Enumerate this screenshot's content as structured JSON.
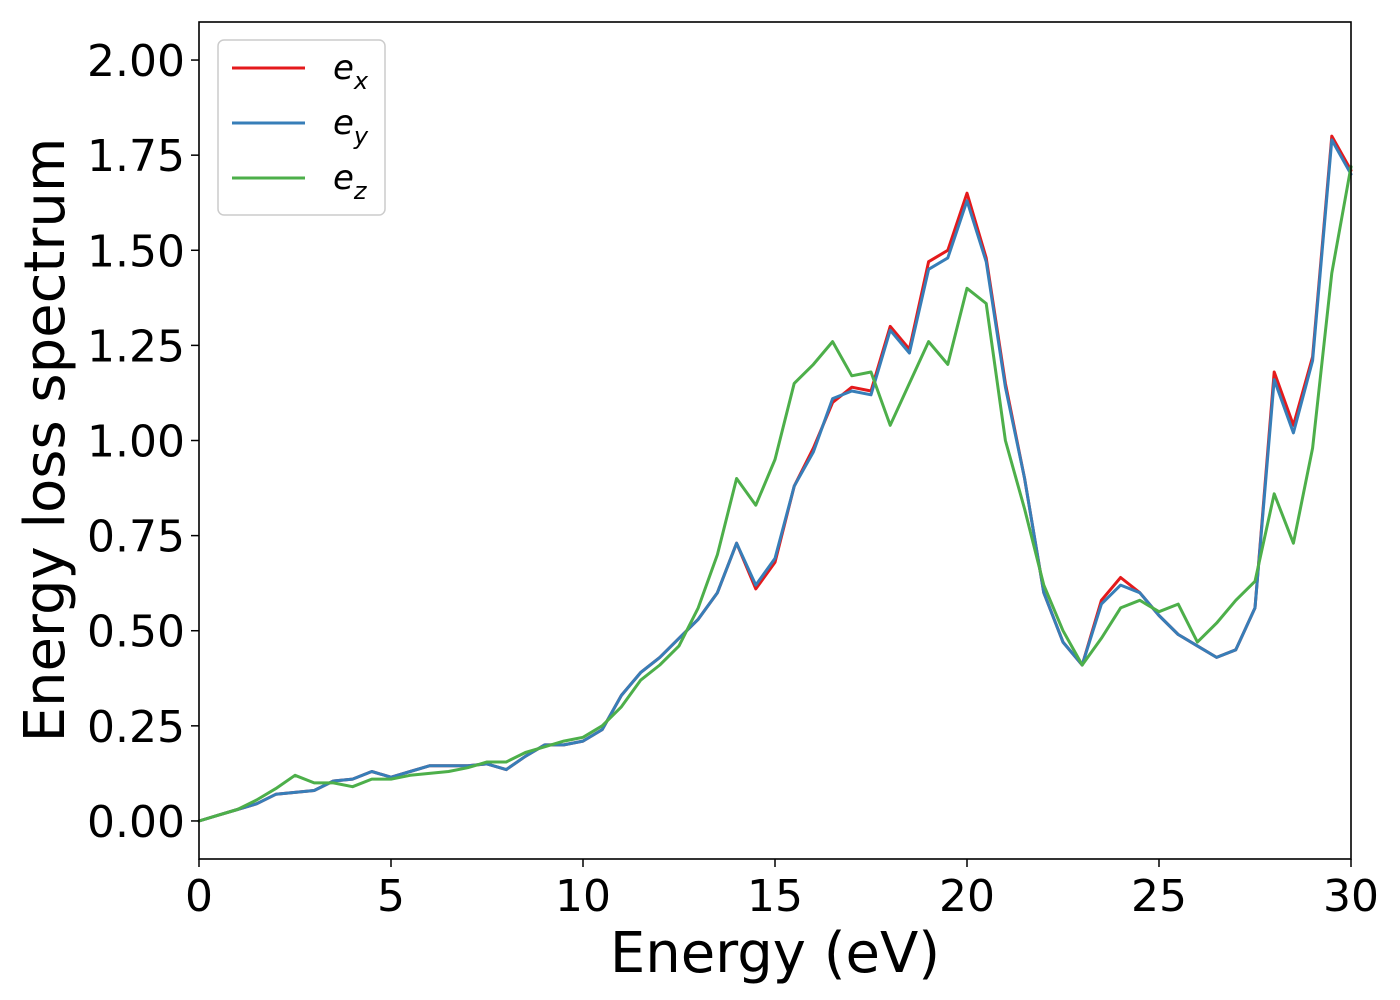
{
  "chart_data": {
    "type": "line",
    "xlabel": "Energy (eV)",
    "ylabel": "Energy loss spectrum",
    "xlim": [
      0,
      30
    ],
    "ylim": [
      -0.1,
      2.1
    ],
    "xticks": [
      0,
      5,
      10,
      15,
      20,
      25,
      30
    ],
    "xtick_labels": [
      "0",
      "5",
      "10",
      "15",
      "20",
      "25",
      "30"
    ],
    "yticks": [
      0,
      0.25,
      0.5,
      0.75,
      1.0,
      1.25,
      1.5,
      1.75,
      2.0
    ],
    "ytick_labels": [
      "0.00",
      "0.25",
      "0.50",
      "0.75",
      "1.00",
      "1.25",
      "1.50",
      "1.75",
      "2.00"
    ],
    "grid": false,
    "legend_position": "top-left",
    "series": [
      {
        "name": "e_x",
        "label_base": "e",
        "label_sub": "x",
        "color": "#e41a1c",
        "x": [
          0,
          0.5,
          1,
          1.5,
          2,
          2.5,
          3,
          3.5,
          4,
          4.5,
          5,
          5.5,
          6,
          6.5,
          7,
          7.5,
          8,
          8.5,
          9,
          9.5,
          10,
          10.5,
          11,
          11.5,
          12,
          12.5,
          13,
          13.5,
          14,
          14.5,
          15,
          15.5,
          16,
          16.5,
          17,
          17.5,
          18,
          18.5,
          19,
          19.5,
          20,
          20.5,
          21,
          21.5,
          22,
          22.5,
          23,
          23.5,
          24,
          24.5,
          25,
          25.5,
          26,
          26.5,
          27,
          27.5,
          28,
          28.5,
          29,
          29.5,
          30
        ],
        "y": [
          0.0,
          0.015,
          0.03,
          0.045,
          0.07,
          0.075,
          0.08,
          0.105,
          0.11,
          0.13,
          0.115,
          0.13,
          0.145,
          0.145,
          0.145,
          0.15,
          0.135,
          0.17,
          0.2,
          0.2,
          0.21,
          0.24,
          0.33,
          0.39,
          0.43,
          0.48,
          0.53,
          0.6,
          0.73,
          0.61,
          0.68,
          0.88,
          0.98,
          1.1,
          1.14,
          1.13,
          1.3,
          1.24,
          1.47,
          1.5,
          1.65,
          1.48,
          1.15,
          0.9,
          0.6,
          0.47,
          0.41,
          0.58,
          0.64,
          0.6,
          0.54,
          0.49,
          0.46,
          0.43,
          0.45,
          0.56,
          1.18,
          1.04,
          1.22,
          1.8,
          1.71
        ]
      },
      {
        "name": "e_y",
        "label_base": "e",
        "label_sub": "y",
        "color": "#377eb8",
        "x": [
          0,
          0.5,
          1,
          1.5,
          2,
          2.5,
          3,
          3.5,
          4,
          4.5,
          5,
          5.5,
          6,
          6.5,
          7,
          7.5,
          8,
          8.5,
          9,
          9.5,
          10,
          10.5,
          11,
          11.5,
          12,
          12.5,
          13,
          13.5,
          14,
          14.5,
          15,
          15.5,
          16,
          16.5,
          17,
          17.5,
          18,
          18.5,
          19,
          19.5,
          20,
          20.5,
          21,
          21.5,
          22,
          22.5,
          23,
          23.5,
          24,
          24.5,
          25,
          25.5,
          26,
          26.5,
          27,
          27.5,
          28,
          28.5,
          29,
          29.5,
          30
        ],
        "y": [
          0.0,
          0.015,
          0.03,
          0.045,
          0.07,
          0.075,
          0.08,
          0.105,
          0.11,
          0.13,
          0.115,
          0.13,
          0.145,
          0.145,
          0.145,
          0.15,
          0.135,
          0.17,
          0.2,
          0.2,
          0.21,
          0.24,
          0.33,
          0.39,
          0.43,
          0.48,
          0.53,
          0.6,
          0.73,
          0.62,
          0.69,
          0.88,
          0.97,
          1.11,
          1.13,
          1.12,
          1.29,
          1.23,
          1.45,
          1.48,
          1.63,
          1.47,
          1.14,
          0.9,
          0.6,
          0.47,
          0.41,
          0.57,
          0.62,
          0.6,
          0.54,
          0.49,
          0.46,
          0.43,
          0.45,
          0.56,
          1.16,
          1.02,
          1.21,
          1.79,
          1.7
        ]
      },
      {
        "name": "e_z",
        "label_base": "e",
        "label_sub": "z",
        "color": "#4daf4a",
        "x": [
          0,
          0.5,
          1,
          1.5,
          2,
          2.5,
          3,
          3.5,
          4,
          4.5,
          5,
          5.5,
          6,
          6.5,
          7,
          7.5,
          8,
          8.5,
          9,
          9.5,
          10,
          10.5,
          11,
          11.5,
          12,
          12.5,
          13,
          13.5,
          14,
          14.5,
          15,
          15.5,
          16,
          16.5,
          17,
          17.5,
          18,
          18.5,
          19,
          19.5,
          20,
          20.5,
          21,
          21.5,
          22,
          22.5,
          23,
          23.5,
          24,
          24.5,
          25,
          25.5,
          26,
          26.5,
          27,
          27.5,
          28,
          28.5,
          29,
          29.5,
          30
        ],
        "y": [
          0.0,
          0.015,
          0.03,
          0.055,
          0.085,
          0.12,
          0.1,
          0.1,
          0.09,
          0.11,
          0.11,
          0.12,
          0.125,
          0.13,
          0.14,
          0.155,
          0.155,
          0.18,
          0.195,
          0.21,
          0.22,
          0.25,
          0.3,
          0.37,
          0.41,
          0.46,
          0.56,
          0.7,
          0.9,
          0.83,
          0.95,
          1.15,
          1.2,
          1.26,
          1.17,
          1.18,
          1.04,
          1.15,
          1.26,
          1.2,
          1.4,
          1.36,
          1.0,
          0.82,
          0.62,
          0.5,
          0.41,
          0.48,
          0.56,
          0.58,
          0.55,
          0.57,
          0.47,
          0.52,
          0.58,
          0.63,
          0.86,
          0.73,
          0.98,
          1.44,
          1.72
        ]
      }
    ]
  }
}
